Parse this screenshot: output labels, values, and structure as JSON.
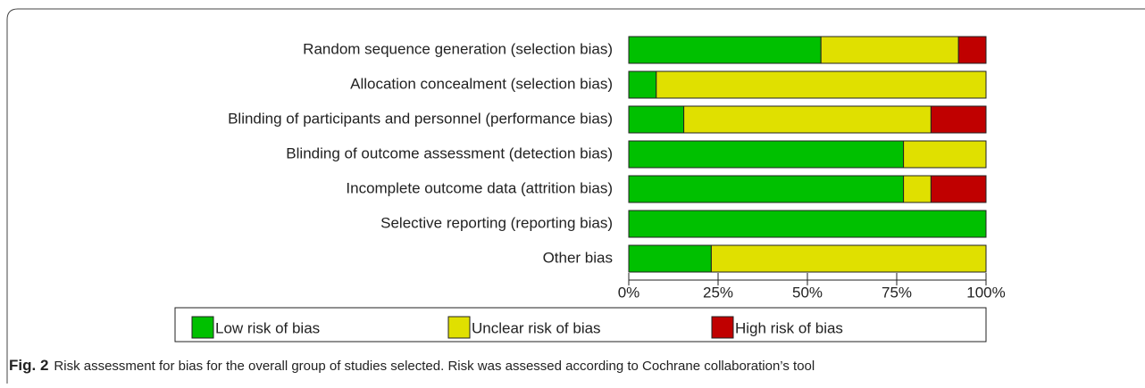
{
  "chart_data": {
    "type": "stacked-bar-horizontal",
    "categories": [
      "Random sequence generation (selection bias)",
      "Allocation concealment (selection bias)",
      "Blinding of participants and personnel (performance bias)",
      "Blinding of outcome assessment (detection bias)",
      "Incomplete outcome data (attrition bias)",
      "Selective reporting (reporting bias)",
      "Other bias"
    ],
    "series": [
      {
        "name": "Low risk of bias",
        "color": "#00c000",
        "values": [
          53.8,
          7.7,
          15.4,
          76.9,
          76.9,
          100,
          23.1
        ]
      },
      {
        "name": "Unclear risk of bias",
        "color": "#e0e000",
        "values": [
          38.5,
          92.3,
          69.2,
          23.1,
          7.7,
          0,
          76.9
        ]
      },
      {
        "name": "High risk of bias",
        "color": "#c00000",
        "values": [
          7.7,
          0,
          15.4,
          0,
          15.4,
          0,
          0
        ]
      }
    ],
    "xlim": [
      0,
      100
    ],
    "xticks": [
      {
        "value": 0,
        "label": "0%"
      },
      {
        "value": 25,
        "label": "25%"
      },
      {
        "value": 50,
        "label": "50%"
      },
      {
        "value": 75,
        "label": "75%"
      },
      {
        "value": 100,
        "label": "100%"
      }
    ],
    "legend": "bottom"
  },
  "caption": {
    "label": "Fig. 2",
    "text": "Risk assessment for bias for the overall group of studies selected. Risk was assessed according to Cochrane  collaboration’s  tool"
  }
}
